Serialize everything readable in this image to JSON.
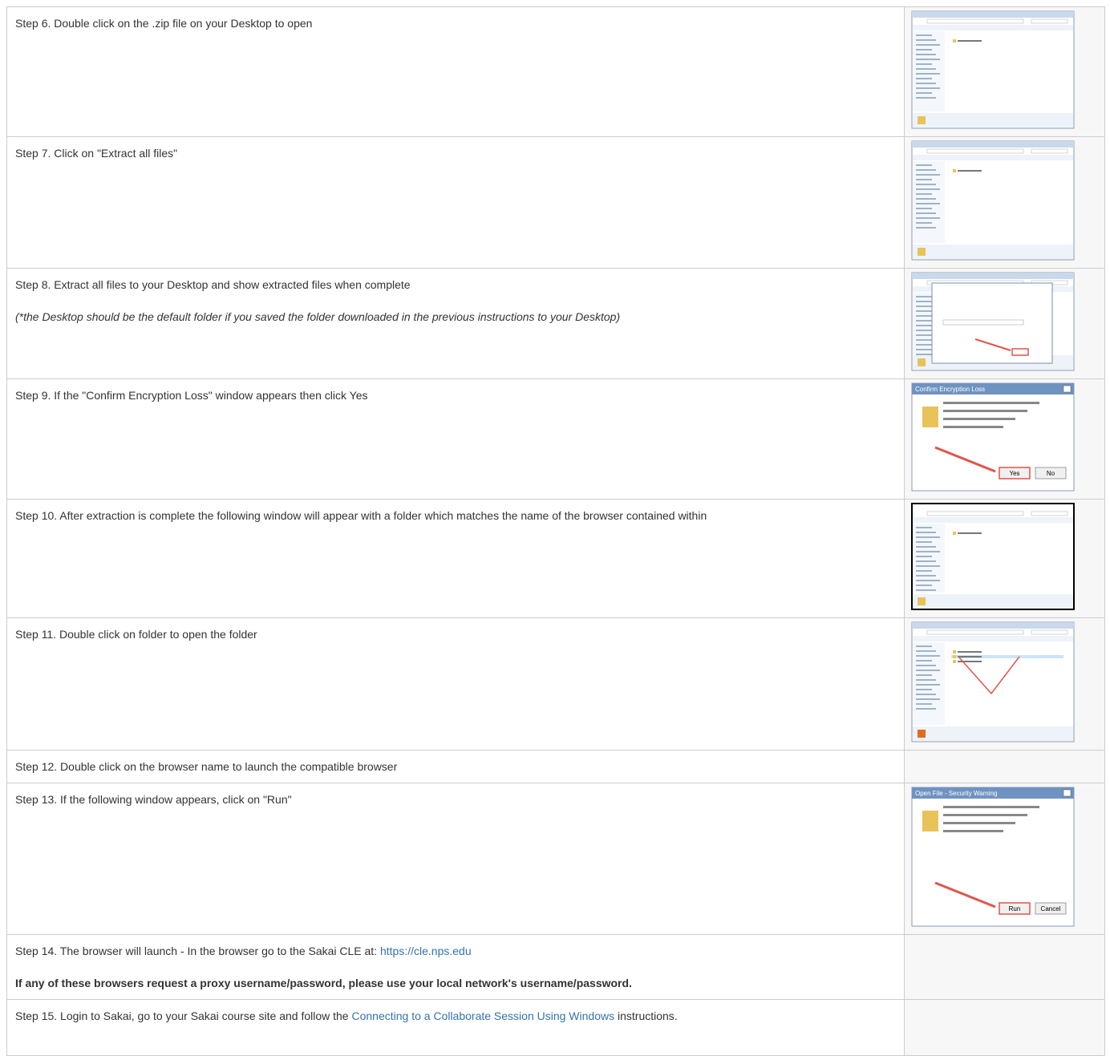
{
  "steps": [
    {
      "text": "Step 6. Double click on the .zip file on your Desktop to open"
    },
    {
      "text": "Step 7. Click on \"Extract all files\""
    },
    {
      "text": "Step 8. Extract all files to your Desktop and show extracted files when complete",
      "note": "(*the Desktop should be the default folder if you saved the folder downloaded in the previous instructions to your Desktop)"
    },
    {
      "text": "Step 9. If the \"Confirm Encryption Loss\" window appears then click Yes",
      "dialog": {
        "title": "Confirm Encryption Loss",
        "buttons": [
          "Yes",
          "No"
        ]
      }
    },
    {
      "text": "Step 10. After extraction is complete the following window will appear with a folder which matches the name of the browser contained within"
    },
    {
      "text": "Step 11. Double click on folder to open the folder"
    },
    {
      "text": "Step 12. Double click on the browser name to launch the compatible browser"
    },
    {
      "text": "Step 13. If the following window appears, click on \"Run\"",
      "dialog": {
        "title": "Open File - Security Warning",
        "buttons": [
          "Run",
          "Cancel"
        ]
      }
    },
    {
      "text": "Step 14. The browser will launch - In the browser go to the Sakai CLE at:",
      "link": "https://cle.nps.edu",
      "note": "If any of these browsers request a proxy username/password, please use your local network's username/password."
    },
    {
      "text": "Step 15. Login to Sakai, go to your Sakai course site and follow the",
      "link": "Connecting to a Collaborate Session Using Windows",
      "after": "instructions."
    }
  ]
}
